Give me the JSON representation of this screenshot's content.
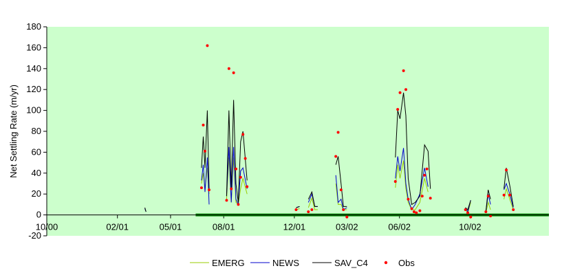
{
  "chart_data": {
    "type": "line",
    "title": "",
    "xlabel": "",
    "ylabel": "Net Settling Rate (m/yr)",
    "ylim": [
      -20,
      180
    ],
    "yticks": [
      -20,
      0,
      20,
      40,
      60,
      80,
      100,
      120,
      140,
      160,
      180
    ],
    "xlim": [
      "2000-10-01",
      "2003-02-08"
    ],
    "xticks": [
      "10/00",
      "02/01",
      "05/01",
      "08/01",
      "12/01",
      "03/02",
      "06/02",
      "10/02"
    ],
    "xtick_dates": [
      "2000-10-01",
      "2001-01-30",
      "2001-05-01",
      "2001-07-31",
      "2001-11-29",
      "2002-02-27",
      "2002-05-28",
      "2002-09-26"
    ],
    "grid": false,
    "plot_background": "#ccffcc",
    "legend_position": "bottom",
    "zero_line": {
      "color": "#008000",
      "from": "2001-06-13",
      "to": "2003-02-08"
    },
    "series": [
      {
        "name": "EMERG",
        "color": "#99cc00",
        "segments": [
          [
            [
              "2001-03-18",
              6
            ],
            [
              "2001-03-20",
              3
            ]
          ],
          [
            [
              "2001-06-23",
              30
            ],
            [
              "2001-06-26",
              40
            ],
            [
              "2001-06-29",
              24
            ],
            [
              "2001-07-03",
              45
            ],
            [
              "2001-07-06",
              20
            ]
          ],
          [
            [
              "2001-08-05",
              15
            ],
            [
              "2001-08-09",
              55
            ],
            [
              "2001-08-13",
              12
            ],
            [
              "2001-08-17",
              55
            ],
            [
              "2001-08-21",
              12
            ],
            [
              "2001-08-25",
              10
            ],
            [
              "2001-08-29",
              25
            ],
            [
              "2001-09-02",
              35
            ],
            [
              "2001-09-09",
              20
            ]
          ],
          [
            [
              "2001-12-02",
              5
            ],
            [
              "2001-12-08",
              6
            ]
          ],
          [
            [
              "2001-12-23",
              7
            ],
            [
              "2001-12-29",
              16
            ],
            [
              "2002-01-03",
              5
            ],
            [
              "2002-01-08",
              5
            ]
          ],
          [
            [
              "2002-02-08",
              30
            ],
            [
              "2002-02-12",
              10
            ],
            [
              "2002-02-17",
              10
            ],
            [
              "2002-02-21",
              5
            ],
            [
              "2002-02-27",
              5
            ]
          ],
          [
            [
              "2002-05-21",
              26
            ],
            [
              "2002-05-25",
              48
            ],
            [
              "2002-05-29",
              35
            ],
            [
              "2002-06-04",
              52
            ],
            [
              "2002-06-08",
              25
            ],
            [
              "2002-06-12",
              12
            ],
            [
              "2002-06-18",
              5
            ],
            [
              "2002-06-24",
              5
            ],
            [
              "2002-07-02",
              12
            ],
            [
              "2002-07-10",
              35
            ],
            [
              "2002-07-16",
              22
            ]
          ],
          [
            [
              "2002-09-18",
              5
            ],
            [
              "2002-09-22",
              2
            ],
            [
              "2002-09-27",
              12
            ]
          ],
          [
            [
              "2002-10-23",
              2
            ],
            [
              "2002-10-27",
              12
            ],
            [
              "2002-10-31",
              5
            ]
          ],
          [
            [
              "2002-11-23",
              15
            ],
            [
              "2002-11-27",
              25
            ],
            [
              "2002-12-03",
              15
            ],
            [
              "2002-12-09",
              5
            ]
          ]
        ]
      },
      {
        "name": "NEWS",
        "color": "#0000cc",
        "segments": [
          [
            [
              "2001-03-18",
              6
            ],
            [
              "2001-03-20",
              3
            ]
          ],
          [
            [
              "2001-06-23",
              33
            ],
            [
              "2001-06-26",
              48
            ],
            [
              "2001-06-29",
              22
            ],
            [
              "2001-07-03",
              55
            ],
            [
              "2001-07-06",
              10
            ]
          ],
          [
            [
              "2001-08-05",
              18
            ],
            [
              "2001-08-09",
              65
            ],
            [
              "2001-08-13",
              12
            ],
            [
              "2001-08-17",
              65
            ],
            [
              "2001-08-21",
              15
            ],
            [
              "2001-08-25",
              10
            ],
            [
              "2001-08-29",
              42
            ],
            [
              "2001-09-02",
              45
            ],
            [
              "2001-09-09",
              25
            ]
          ],
          [
            [
              "2001-12-02",
              7
            ],
            [
              "2001-12-08",
              8
            ]
          ],
          [
            [
              "2001-12-23",
              12
            ],
            [
              "2001-12-29",
              20
            ],
            [
              "2002-01-03",
              8
            ],
            [
              "2002-01-08",
              8
            ]
          ],
          [
            [
              "2002-02-08",
              38
            ],
            [
              "2002-02-12",
              12
            ],
            [
              "2002-02-17",
              15
            ],
            [
              "2002-02-21",
              5
            ],
            [
              "2002-02-27",
              7
            ]
          ],
          [
            [
              "2002-05-21",
              35
            ],
            [
              "2002-05-25",
              56
            ],
            [
              "2002-05-29",
              42
            ],
            [
              "2002-06-04",
              64
            ],
            [
              "2002-06-08",
              30
            ],
            [
              "2002-06-12",
              15
            ],
            [
              "2002-06-18",
              5
            ],
            [
              "2002-06-24",
              10
            ],
            [
              "2002-07-02",
              20
            ],
            [
              "2002-07-10",
              45
            ],
            [
              "2002-07-16",
              27
            ]
          ],
          [
            [
              "2002-09-18",
              7
            ],
            [
              "2002-09-22",
              3
            ],
            [
              "2002-09-27",
              14
            ]
          ],
          [
            [
              "2002-10-23",
              3
            ],
            [
              "2002-10-27",
              20
            ],
            [
              "2002-10-31",
              10
            ]
          ],
          [
            [
              "2002-11-23",
              24
            ],
            [
              "2002-11-27",
              30
            ],
            [
              "2002-12-03",
              20
            ],
            [
              "2002-12-09",
              7
            ]
          ]
        ]
      },
      {
        "name": "SAV_C4",
        "color": "#000000",
        "segments": [
          [
            [
              "2001-03-18",
              7
            ],
            [
              "2001-03-20",
              3
            ]
          ],
          [
            [
              "2001-06-23",
              45
            ],
            [
              "2001-06-26",
              75
            ],
            [
              "2001-06-29",
              45
            ],
            [
              "2001-07-03",
              100
            ],
            [
              "2001-07-06",
              25
            ]
          ],
          [
            [
              "2001-08-05",
              18
            ],
            [
              "2001-08-09",
              100
            ],
            [
              "2001-08-13",
              25
            ],
            [
              "2001-08-17",
              110
            ],
            [
              "2001-08-21",
              30
            ],
            [
              "2001-08-25",
              12
            ],
            [
              "2001-08-29",
              70
            ],
            [
              "2001-09-02",
              80
            ],
            [
              "2001-09-09",
              33
            ]
          ],
          [
            [
              "2001-12-02",
              7
            ],
            [
              "2001-12-08",
              8
            ]
          ],
          [
            [
              "2001-12-23",
              15
            ],
            [
              "2001-12-29",
              22
            ],
            [
              "2002-01-03",
              8
            ],
            [
              "2002-01-08",
              8
            ]
          ],
          [
            [
              "2002-02-08",
              48
            ],
            [
              "2002-02-12",
              56
            ],
            [
              "2002-02-17",
              30
            ],
            [
              "2002-02-21",
              8
            ],
            [
              "2002-02-27",
              8
            ]
          ],
          [
            [
              "2002-05-21",
              55
            ],
            [
              "2002-05-25",
              100
            ],
            [
              "2002-05-29",
              92
            ],
            [
              "2002-06-04",
              117
            ],
            [
              "2002-06-08",
              95
            ],
            [
              "2002-06-12",
              35
            ],
            [
              "2002-06-18",
              10
            ],
            [
              "2002-06-24",
              12
            ],
            [
              "2002-07-02",
              18
            ],
            [
              "2002-07-10",
              67
            ],
            [
              "2002-07-16",
              61
            ],
            [
              "2002-07-20",
              25
            ]
          ],
          [
            [
              "2002-09-18",
              7
            ],
            [
              "2002-09-22",
              5
            ],
            [
              "2002-09-27",
              14
            ]
          ],
          [
            [
              "2002-10-23",
              3
            ],
            [
              "2002-10-27",
              24
            ],
            [
              "2002-10-31",
              15
            ]
          ],
          [
            [
              "2002-11-23",
              25
            ],
            [
              "2002-11-27",
              45
            ],
            [
              "2002-12-03",
              28
            ],
            [
              "2002-12-09",
              8
            ]
          ]
        ]
      },
      {
        "name": "Obs",
        "type": "scatter",
        "color": "#ff0000",
        "points": [
          [
            "2001-06-23",
            26
          ],
          [
            "2001-06-26",
            86
          ],
          [
            "2001-06-29",
            61
          ],
          [
            "2001-07-03",
            162
          ],
          [
            "2001-07-06",
            24
          ],
          [
            "2001-08-05",
            14
          ],
          [
            "2001-08-09",
            140
          ],
          [
            "2001-08-13",
            25
          ],
          [
            "2001-08-17",
            136
          ],
          [
            "2001-08-21",
            44
          ],
          [
            "2001-08-25",
            10
          ],
          [
            "2001-08-29",
            36
          ],
          [
            "2001-09-02",
            77
          ],
          [
            "2001-09-06",
            54
          ],
          [
            "2001-09-09",
            27
          ],
          [
            "2001-12-02",
            5
          ],
          [
            "2001-12-23",
            3
          ],
          [
            "2001-12-29",
            5
          ],
          [
            "2002-02-08",
            56
          ],
          [
            "2002-02-12",
            79
          ],
          [
            "2002-02-17",
            24
          ],
          [
            "2002-02-21",
            5
          ],
          [
            "2002-02-27",
            -2
          ],
          [
            "2002-05-21",
            32
          ],
          [
            "2002-05-25",
            101
          ],
          [
            "2002-05-29",
            117
          ],
          [
            "2002-06-04",
            138
          ],
          [
            "2002-06-08",
            120
          ],
          [
            "2002-06-12",
            15
          ],
          [
            "2002-06-18",
            6
          ],
          [
            "2002-06-22",
            3
          ],
          [
            "2002-06-26",
            2
          ],
          [
            "2002-07-02",
            4
          ],
          [
            "2002-07-06",
            18
          ],
          [
            "2002-07-10",
            38
          ],
          [
            "2002-07-14",
            44
          ],
          [
            "2002-07-20",
            16
          ],
          [
            "2002-09-18",
            5
          ],
          [
            "2002-09-22",
            2
          ],
          [
            "2002-09-27",
            -2
          ],
          [
            "2002-10-23",
            3
          ],
          [
            "2002-10-27",
            18
          ],
          [
            "2002-10-31",
            -1
          ],
          [
            "2002-11-23",
            19
          ],
          [
            "2002-11-27",
            43
          ],
          [
            "2002-12-03",
            19
          ],
          [
            "2002-12-09",
            5
          ]
        ]
      }
    ]
  }
}
